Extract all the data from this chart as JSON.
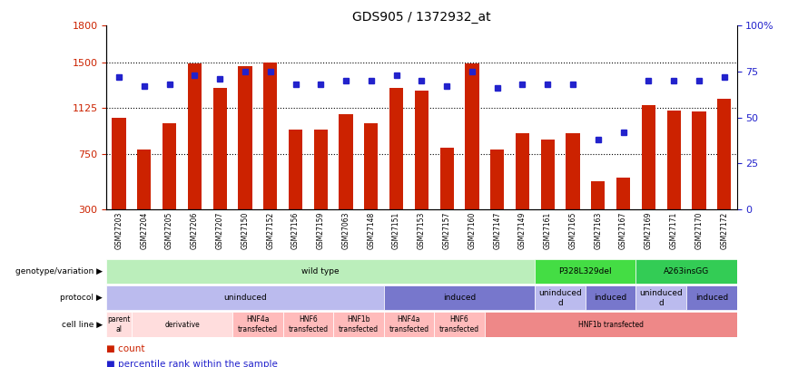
{
  "title": "GDS905 / 1372932_at",
  "samples": [
    "GSM27203",
    "GSM27204",
    "GSM27205",
    "GSM27206",
    "GSM27207",
    "GSM27150",
    "GSM27152",
    "GSM27156",
    "GSM27159",
    "GSM27063",
    "GSM27148",
    "GSM27151",
    "GSM27153",
    "GSM27157",
    "GSM27160",
    "GSM27147",
    "GSM27149",
    "GSM27161",
    "GSM27165",
    "GSM27163",
    "GSM27167",
    "GSM27169",
    "GSM27171",
    "GSM27170",
    "GSM27172"
  ],
  "counts": [
    1050,
    790,
    1000,
    1490,
    1290,
    1470,
    1500,
    950,
    950,
    1080,
    1000,
    1290,
    1270,
    800,
    1490,
    790,
    920,
    870,
    920,
    530,
    560,
    1150,
    1110,
    1100,
    1200
  ],
  "percentiles": [
    72,
    67,
    68,
    73,
    71,
    75,
    75,
    68,
    68,
    70,
    70,
    73,
    70,
    67,
    75,
    66,
    68,
    68,
    68,
    38,
    42,
    70,
    70,
    70,
    72
  ],
  "bar_color": "#cc2200",
  "dot_color": "#2222cc",
  "ylim_left": [
    300,
    1800
  ],
  "ylim_right": [
    0,
    100
  ],
  "yticks_left": [
    300,
    750,
    1125,
    1500,
    1800
  ],
  "yticks_right": [
    0,
    25,
    50,
    75,
    100
  ],
  "hlines": [
    750,
    1125,
    1500
  ],
  "genotype_segments": [
    {
      "start": 0,
      "end": 17,
      "label": "wild type",
      "color": "#bbeebb"
    },
    {
      "start": 17,
      "end": 21,
      "label": "P328L329del",
      "color": "#44dd44"
    },
    {
      "start": 21,
      "end": 25,
      "label": "A263insGG",
      "color": "#33cc55"
    }
  ],
  "protocol_segments": [
    {
      "start": 0,
      "end": 11,
      "label": "uninduced",
      "color": "#bbbbee"
    },
    {
      "start": 11,
      "end": 17,
      "label": "induced",
      "color": "#7777cc"
    },
    {
      "start": 17,
      "end": 19,
      "label": "uninduced\nd",
      "color": "#bbbbee"
    },
    {
      "start": 19,
      "end": 21,
      "label": "induced",
      "color": "#7777cc"
    },
    {
      "start": 21,
      "end": 23,
      "label": "uninduced\nd",
      "color": "#bbbbee"
    },
    {
      "start": 23,
      "end": 25,
      "label": "induced",
      "color": "#7777cc"
    }
  ],
  "cellline_segments": [
    {
      "start": 0,
      "end": 1,
      "label": "parent\nal",
      "color": "#ffdddd"
    },
    {
      "start": 1,
      "end": 5,
      "label": "derivative",
      "color": "#ffdddd"
    },
    {
      "start": 5,
      "end": 7,
      "label": "HNF4a\ntransfected",
      "color": "#ffbbbb"
    },
    {
      "start": 7,
      "end": 9,
      "label": "HNF6\ntransfected",
      "color": "#ffbbbb"
    },
    {
      "start": 9,
      "end": 11,
      "label": "HNF1b\ntransfected",
      "color": "#ffbbbb"
    },
    {
      "start": 11,
      "end": 13,
      "label": "HNF4a\ntransfected",
      "color": "#ffbbbb"
    },
    {
      "start": 13,
      "end": 15,
      "label": "HNF6\ntransfected",
      "color": "#ffbbbb"
    },
    {
      "start": 15,
      "end": 25,
      "label": "HNF1b transfected",
      "color": "#ee8888"
    }
  ],
  "row_labels": [
    "genotype/variation",
    "protocol",
    "cell line"
  ],
  "legend_count_color": "#cc2200",
  "legend_dot_color": "#2222cc",
  "bg_color": "#ffffff"
}
